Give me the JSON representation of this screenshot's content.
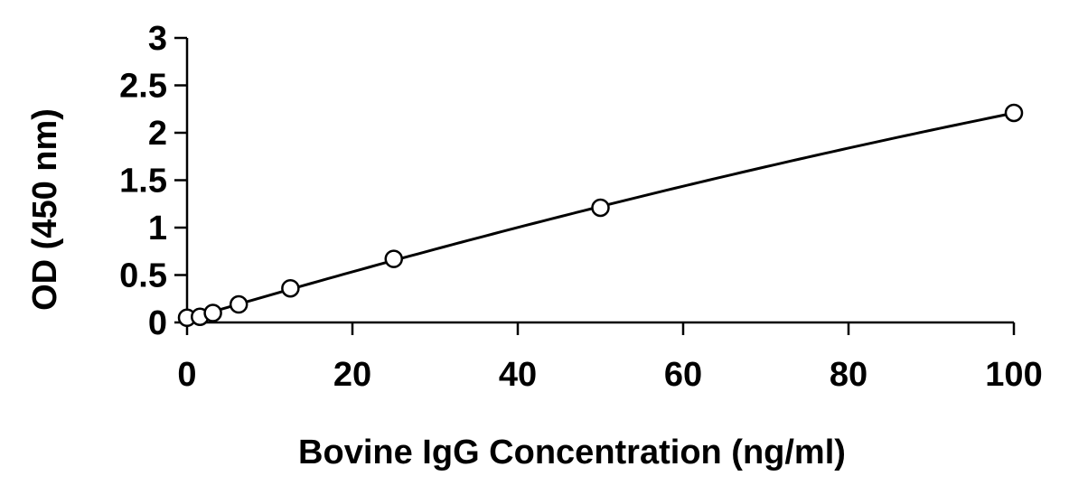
{
  "chart_data": {
    "type": "scatter",
    "title": "",
    "xlabel": "Bovine IgG Concentration (ng/ml)",
    "ylabel": "OD (450 nm)",
    "xlim": [
      0,
      100
    ],
    "ylim": [
      0,
      3
    ],
    "x_ticks": [
      0,
      20,
      40,
      60,
      80,
      100
    ],
    "y_ticks": [
      0,
      0.5,
      1,
      1.5,
      2,
      2.5,
      3
    ],
    "x_tick_labels": [
      "0",
      "20",
      "40",
      "60",
      "80",
      "100"
    ],
    "y_tick_labels": [
      "0",
      "0.5",
      "1",
      "1.5",
      "2",
      "2.5",
      "3"
    ],
    "grid": false,
    "legend": "none",
    "series": [
      {
        "marker": "open-circle",
        "x": [
          0,
          1.56,
          3.125,
          6.25,
          12.5,
          25,
          50,
          100
        ],
        "y": [
          0.05,
          0.06,
          0.1,
          0.19,
          0.36,
          0.67,
          1.21,
          2.21
        ]
      }
    ],
    "fit": {
      "type": "curve",
      "color": "#000000"
    }
  }
}
